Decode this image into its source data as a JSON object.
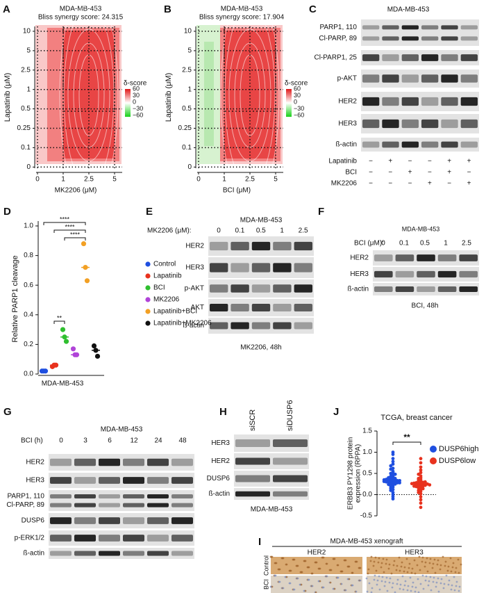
{
  "panels": {
    "A": {
      "label": "A",
      "title": "MDA-MB-453",
      "subtitle": "Bliss synergy score: 24.315",
      "ylabel": "Lapatinib (μM)",
      "xlabel": "MK2206 (μM)",
      "yticks": [
        "10",
        "5",
        "2.5",
        "1",
        "0.5",
        "0.25",
        "0.1",
        "0"
      ],
      "xticks": [
        "0",
        "1",
        "2.5",
        "5"
      ],
      "legend_title": "δ-score",
      "legend_ticks": [
        "60",
        "30",
        "0",
        "−30",
        "−60"
      ]
    },
    "B": {
      "label": "B",
      "title": "MDA-MB-453",
      "subtitle": "Bliss synergy score: 17.904",
      "ylabel": "Lapatinib (μM)",
      "xlabel": "BCI (μM)",
      "yticks": [
        "10",
        "5",
        "2.5",
        "1",
        "0.5",
        "0.25",
        "0.1",
        "0"
      ],
      "xticks": [
        "0",
        "1",
        "2.5",
        "5"
      ],
      "legend_title": "δ-score",
      "legend_ticks": [
        "60",
        "30",
        "0",
        "−30",
        "−60"
      ]
    },
    "C": {
      "label": "C",
      "title": "MDA-MB-453",
      "rows": [
        "PARP1, 110",
        "Cl-PARP, 89",
        "Cl-PARP1, 25",
        "p-AKT",
        "HER2",
        "HER3",
        "ß-actin"
      ],
      "treatments": [
        {
          "name": "Lapatinib",
          "signs": [
            "−",
            "+",
            "−",
            "−",
            "+",
            "+"
          ]
        },
        {
          "name": "BCI",
          "signs": [
            "−",
            "−",
            "+",
            "−",
            "+",
            "−"
          ]
        },
        {
          "name": "MK2206",
          "signs": [
            "−",
            "−",
            "−",
            "+",
            "−",
            "+"
          ]
        }
      ]
    },
    "E": {
      "label": "E",
      "title": "MDA-MB-453",
      "dose_label": "MK2206 (μM):",
      "doses": [
        "0",
        "0.1",
        "0.5",
        "1",
        "2.5"
      ],
      "rows": [
        "HER2",
        "HER3",
        "p-AKT",
        "AKT",
        "ß-actin"
      ],
      "caption": "MK2206, 48h"
    },
    "F": {
      "label": "F",
      "title": "MDA-MB-453",
      "dose_label": "BCI (μM):",
      "doses": [
        "0",
        "0.1",
        "0.5",
        "1",
        "2.5"
      ],
      "rows": [
        "HER2",
        "HER3",
        "ß-actin"
      ],
      "caption": "BCI, 48h"
    },
    "G": {
      "label": "G",
      "title": "MDA-MB-453",
      "dose_label": "BCI (h)",
      "doses": [
        "0",
        "3",
        "6",
        "12",
        "24",
        "48"
      ],
      "rows": [
        "HER2",
        "HER3",
        "PARP1, 110",
        "Cl-PARP, 89",
        "DUSP6",
        "p-ERK1/2",
        "ß-actin"
      ]
    },
    "H": {
      "label": "H",
      "columns": [
        "siSCR",
        "siDUSP6"
      ],
      "rows": [
        "HER3",
        "HER2",
        "DUSP6",
        "ß-actin"
      ],
      "caption": "MDA-MB-453"
    },
    "I": {
      "label": "I",
      "title": "MDA-MB-453 xenograft",
      "columns": [
        "HER2",
        "HER3"
      ],
      "rows": [
        "Control",
        "BCI"
      ]
    }
  },
  "chart_data": [
    {
      "type": "strip",
      "panel_label": "D",
      "ylabel": "Relative PARP1 cleavage",
      "xlabel": "MDA-MB-453",
      "ylim": [
        0,
        1.0
      ],
      "yticks": [
        {
          "value": 0,
          "label": "0.0"
        },
        0.2,
        0.4,
        0.6,
        0.8,
        {
          "value": 1.0,
          "label": "1.0"
        }
      ],
      "legend": "right",
      "annotations": [
        "****",
        "****",
        "****",
        "**"
      ],
      "series": [
        {
          "name": "Control",
          "color": "#1f4fe0",
          "values": [
            0.02,
            0.02,
            0.02
          ],
          "median": 0.02
        },
        {
          "name": "Lapatinib",
          "color": "#e8321e",
          "values": [
            0.05,
            0.06,
            0.06
          ],
          "median": 0.06
        },
        {
          "name": "BCI",
          "color": "#2fbf2f",
          "values": [
            0.3,
            0.25,
            0.22
          ],
          "median": 0.25
        },
        {
          "name": "MK2206",
          "color": "#b044d8",
          "values": [
            0.17,
            0.13,
            0.13
          ],
          "median": 0.13
        },
        {
          "name": "Lapatinib+BCI",
          "color": "#f2a024",
          "values": [
            0.88,
            0.72,
            0.63
          ],
          "median": 0.72
        },
        {
          "name": "Lapatinib+MK2206",
          "color": "#111111",
          "values": [
            0.19,
            0.16,
            0.12
          ],
          "median": 0.16
        }
      ]
    },
    {
      "type": "swarm",
      "panel_label": "J",
      "title": "TCGA, breast cancer",
      "ylabel": [
        "ERBB3 PY1298 protein",
        "expression (RPPA)"
      ],
      "ylim": [
        -0.5,
        1.5
      ],
      "yticks": [
        -0.5,
        {
          "value": 0,
          "label": "0.0"
        },
        0.5,
        {
          "value": 1.0,
          "label": "1.0"
        },
        1.5
      ],
      "zero_line": true,
      "annotation": "**",
      "legend": "right",
      "series": [
        {
          "name": "DUSP6high",
          "color": "#1f4fe0",
          "values": [
            1.0,
            0.95,
            0.85,
            0.78,
            0.72,
            0.68,
            0.62,
            0.6,
            0.55,
            0.52,
            0.5,
            0.48,
            0.45,
            0.43,
            0.42,
            0.4,
            0.38,
            0.37,
            0.36,
            0.35,
            0.34,
            0.33,
            0.32,
            0.31,
            0.3,
            0.29,
            0.28,
            0.27,
            0.26,
            0.25,
            0.24,
            0.22,
            0.2,
            0.18,
            0.15,
            0.12,
            0.1,
            0.05,
            0.0,
            -0.05,
            -0.1,
            0.36,
            0.33,
            0.3,
            0.28,
            0.4,
            0.35,
            0.31
          ]
        },
        {
          "name": "DUSP6low",
          "color": "#e8321e",
          "values": [
            0.85,
            0.75,
            0.65,
            0.58,
            0.52,
            0.48,
            0.44,
            0.4,
            0.38,
            0.36,
            0.34,
            0.32,
            0.3,
            0.29,
            0.28,
            0.27,
            0.26,
            0.25,
            0.24,
            0.23,
            0.22,
            0.21,
            0.2,
            0.19,
            0.18,
            0.16,
            0.14,
            0.12,
            0.1,
            0.08,
            0.05,
            0.02,
            -0.05,
            -0.12,
            -0.2,
            -0.3,
            0.27,
            0.25,
            0.22,
            0.2,
            0.3,
            0.26,
            0.23
          ]
        }
      ]
    }
  ]
}
